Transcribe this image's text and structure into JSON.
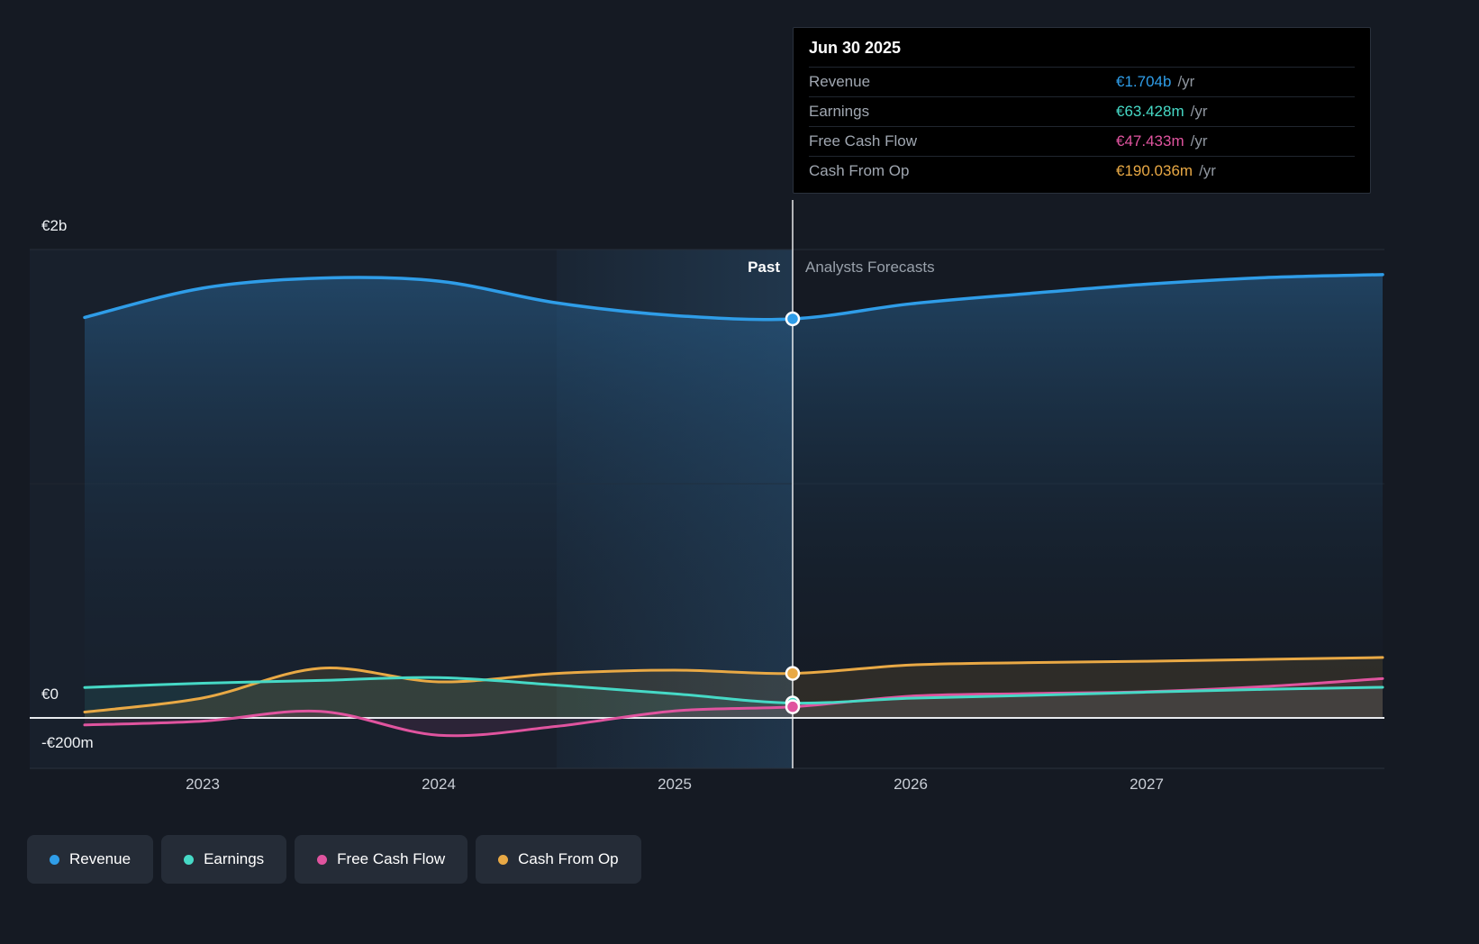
{
  "tooltip": {
    "date": "Jun 30 2025",
    "rows": [
      {
        "label": "Revenue",
        "value": "€1.704b",
        "suffix": "/yr",
        "color": "#2F9DE8"
      },
      {
        "label": "Earnings",
        "value": "€63.428m",
        "suffix": "/yr",
        "color": "#46D9C6"
      },
      {
        "label": "Free Cash Flow",
        "value": "€47.433m",
        "suffix": "/yr",
        "color": "#E0549F"
      },
      {
        "label": "Cash From Op",
        "value": "€190.036m",
        "suffix": "/yr",
        "color": "#E9A945"
      }
    ]
  },
  "annotations": {
    "past": "Past",
    "forecast": "Analysts Forecasts"
  },
  "y_axis": {
    "ticks": [
      "€2b",
      "€0",
      "-€200m"
    ]
  },
  "x_axis": {
    "ticks": [
      "2023",
      "2024",
      "2025",
      "2026",
      "2027"
    ]
  },
  "legend": {
    "items": [
      {
        "label": "Revenue",
        "color": "#2F9DE8"
      },
      {
        "label": "Earnings",
        "color": "#46D9C6"
      },
      {
        "label": "Free Cash Flow",
        "color": "#E0549F"
      },
      {
        "label": "Cash From Op",
        "color": "#E9A945"
      }
    ]
  },
  "chart_data": {
    "type": "line",
    "units": "EUR millions per year",
    "x": [
      2022.5,
      2023,
      2023.5,
      2024,
      2024.5,
      2025,
      2025.5,
      2026,
      2026.5,
      2027,
      2027.5,
      2028
    ],
    "x_tick_positions": [
      2023,
      2024,
      2025,
      2026,
      2027
    ],
    "x_tick_labels": [
      "2023",
      "2024",
      "2025",
      "2026",
      "2027"
    ],
    "y_ticks_eur_m": [
      2000,
      0,
      -200
    ],
    "y_tick_labels": [
      "€2b",
      "€0",
      "-€200m"
    ],
    "ylim_eur_m": [
      -215,
      2250
    ],
    "divider_x": 2025.5,
    "divider_label_left": "Past",
    "divider_label_right": "Analysts Forecasts",
    "grid": true,
    "legend_position": "bottom-left",
    "series": [
      {
        "name": "Revenue",
        "color": "#2F9DE8",
        "values_eur_m": [
          1710,
          1835,
          1878,
          1865,
          1772,
          1718,
          1704,
          1768,
          1812,
          1852,
          1880,
          1893
        ]
      },
      {
        "name": "Earnings",
        "color": "#46D9C6",
        "values_eur_m": [
          130,
          148,
          160,
          172,
          140,
          103,
          63.428,
          84,
          96,
          110,
          122,
          131
        ]
      },
      {
        "name": "Free Cash Flow",
        "color": "#E0549F",
        "values_eur_m": [
          -30,
          -14,
          28,
          -74,
          -36,
          30,
          47.433,
          93,
          104,
          112,
          134,
          168
        ]
      },
      {
        "name": "Cash From Op",
        "color": "#E9A945",
        "values_eur_m": [
          25,
          85,
          212,
          154,
          190,
          204,
          190.036,
          226,
          236,
          242,
          250,
          258
        ]
      }
    ],
    "at_divider": {
      "date": "Jun 30 2025",
      "Revenue": "€1.704b /yr",
      "Earnings": "€63.428m /yr",
      "Free Cash Flow": "€47.433m /yr",
      "Cash From Op": "€190.036m /yr"
    }
  }
}
